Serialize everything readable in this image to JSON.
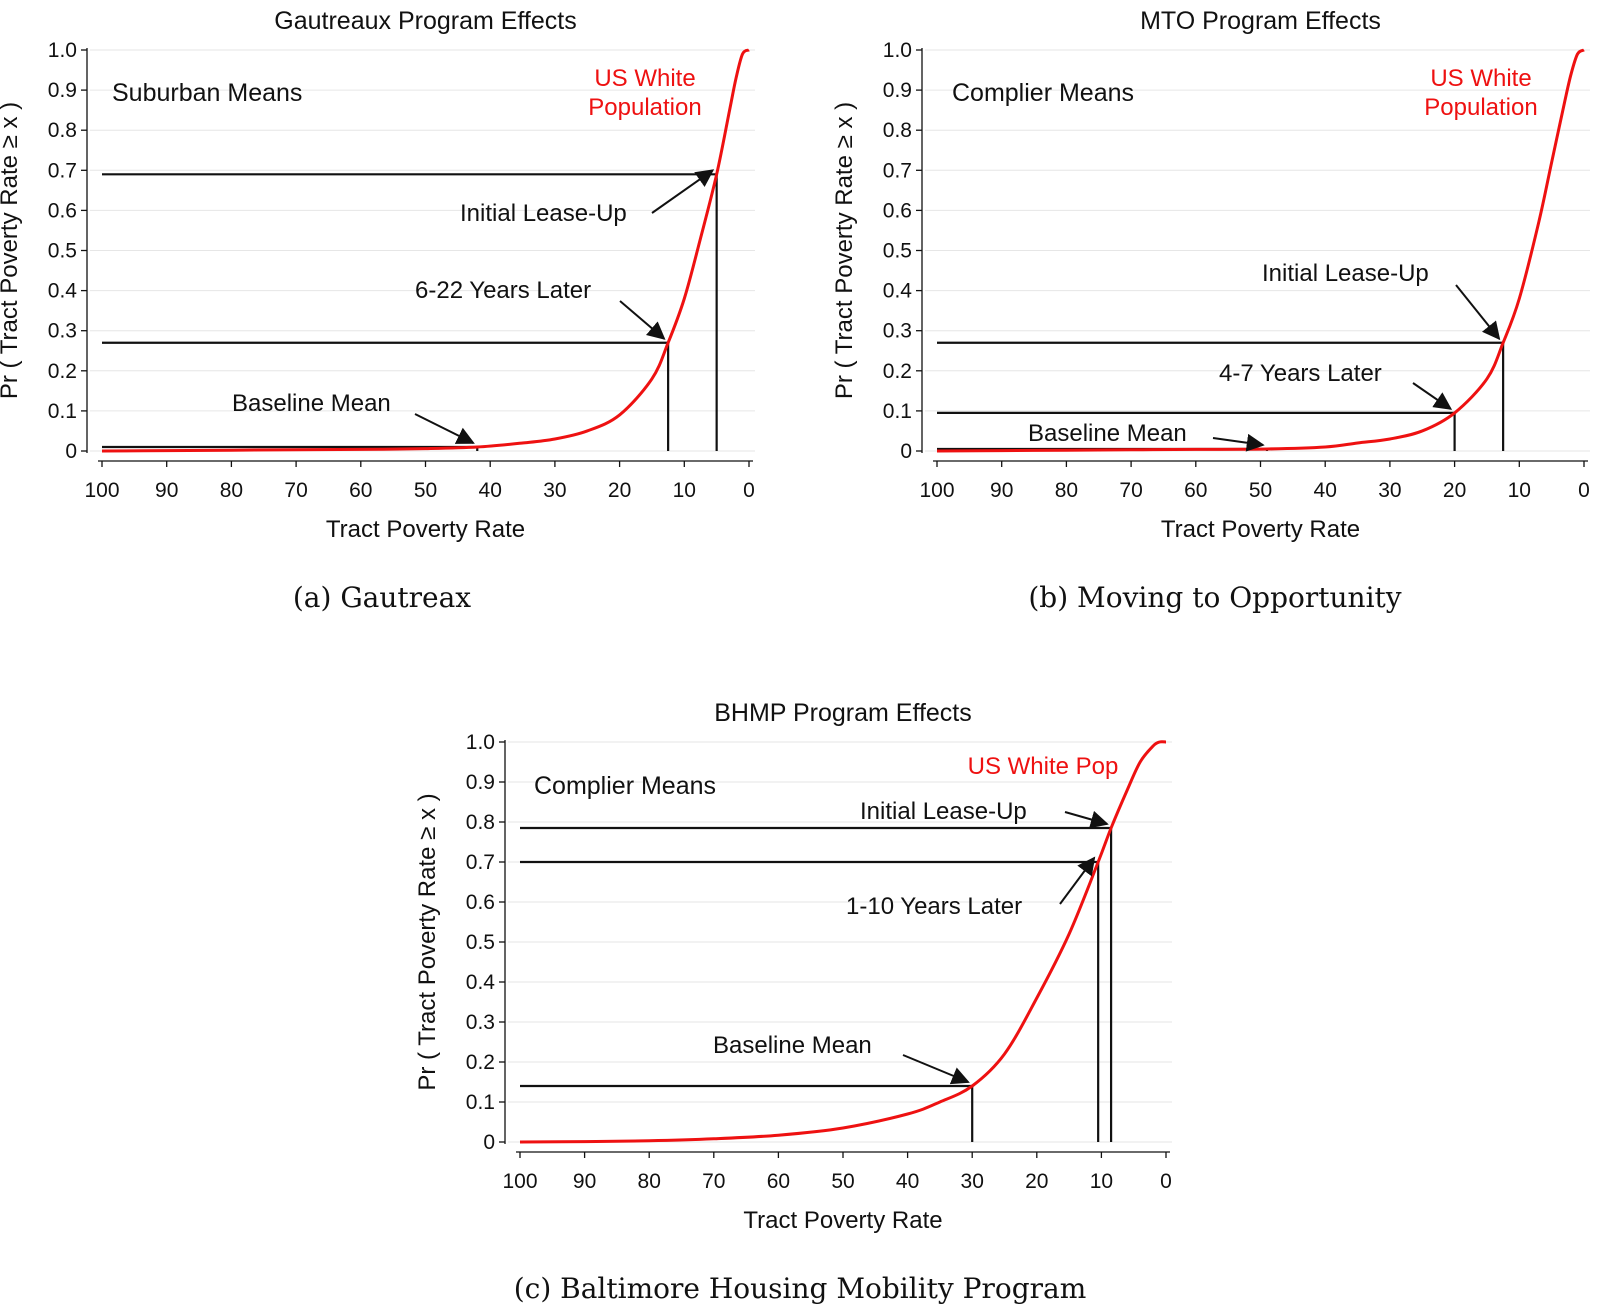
{
  "captions": [
    "(a) Gautreax",
    "(b) Moving to Opportunity",
    "(c) Baltimore Housing Mobility Program"
  ],
  "chart_data": [
    {
      "type": "line",
      "title": "Gautreaux Program Effects",
      "xlabel": "Tract Poverty Rate",
      "ylabel": "Pr ( Tract Poverty Rate ≥ x )",
      "xlim": [
        100,
        0
      ],
      "ylim": [
        0,
        1
      ],
      "x_reversed": true,
      "xticks": [
        "100",
        "90",
        "80",
        "70",
        "60",
        "50",
        "40",
        "30",
        "20",
        "10",
        "0"
      ],
      "yticks": [
        "0",
        "0.1",
        "0.2",
        "0.3",
        "0.4",
        "0.5",
        "0.6",
        "0.7",
        "0.8",
        "0.9",
        "1.0"
      ],
      "grid": true,
      "panel_label": "Suburban Means",
      "reference_label": [
        "US White",
        "Population"
      ],
      "series": [
        {
          "name": "US White Population",
          "color": "#ee1111",
          "x": [
            100,
            90,
            80,
            70,
            60,
            50,
            42,
            35,
            30,
            25,
            20,
            15,
            12.5,
            10,
            7.5,
            5,
            3,
            2,
            1,
            0
          ],
          "y": [
            0.0,
            0.001,
            0.002,
            0.003,
            0.004,
            0.006,
            0.01,
            0.02,
            0.03,
            0.05,
            0.09,
            0.18,
            0.27,
            0.38,
            0.53,
            0.69,
            0.85,
            0.93,
            0.99,
            1.0
          ]
        }
      ],
      "markers": [
        {
          "label": "Baseline Mean",
          "x": 42,
          "y": 0.01
        },
        {
          "label": "6-22 Years Later",
          "x": 12.5,
          "y": 0.27
        },
        {
          "label": "Initial Lease-Up",
          "x": 5,
          "y": 0.69
        }
      ]
    },
    {
      "type": "line",
      "title": "MTO Program Effects",
      "xlabel": "Tract Poverty Rate",
      "ylabel": "Pr ( Tract Poverty Rate ≥ x )",
      "xlim": [
        100,
        0
      ],
      "ylim": [
        0,
        1
      ],
      "x_reversed": true,
      "xticks": [
        "100",
        "90",
        "80",
        "70",
        "60",
        "50",
        "40",
        "30",
        "20",
        "10",
        "0"
      ],
      "yticks": [
        "0",
        "0.1",
        "0.2",
        "0.3",
        "0.4",
        "0.5",
        "0.6",
        "0.7",
        "0.8",
        "0.9",
        "1.0"
      ],
      "grid": true,
      "panel_label": "Complier Means",
      "reference_label": [
        "US White",
        "Population"
      ],
      "series": [
        {
          "name": "US White Population",
          "color": "#ee1111",
          "x": [
            100,
            90,
            80,
            70,
            60,
            49,
            40,
            35,
            30,
            25,
            20,
            15,
            12.5,
            10,
            7,
            5,
            3,
            2,
            1,
            0
          ],
          "y": [
            0.0,
            0.001,
            0.002,
            0.003,
            0.004,
            0.005,
            0.01,
            0.02,
            0.03,
            0.05,
            0.095,
            0.18,
            0.27,
            0.38,
            0.57,
            0.72,
            0.87,
            0.94,
            0.99,
            1.0
          ]
        }
      ],
      "markers": [
        {
          "label": "Baseline Mean",
          "x": 49,
          "y": 0.005
        },
        {
          "label": "4-7 Years Later",
          "x": 20,
          "y": 0.095
        },
        {
          "label": "Initial Lease-Up",
          "x": 12.5,
          "y": 0.27
        }
      ]
    },
    {
      "type": "line",
      "title": "BHMP Program Effects",
      "xlabel": "Tract Poverty Rate",
      "ylabel": "Pr ( Tract Poverty Rate ≥ x )",
      "xlim": [
        100,
        0
      ],
      "ylim": [
        0,
        1
      ],
      "x_reversed": true,
      "xticks": [
        "100",
        "90",
        "80",
        "70",
        "60",
        "50",
        "40",
        "30",
        "20",
        "10",
        "0"
      ],
      "yticks": [
        "0",
        "0.1",
        "0.2",
        "0.3",
        "0.4",
        "0.5",
        "0.6",
        "0.7",
        "0.8",
        "0.9",
        "1.0"
      ],
      "grid": true,
      "panel_label": "Complier Means",
      "reference_label": [
        "US White Pop"
      ],
      "series": [
        {
          "name": "US White Pop",
          "color": "#ee1111",
          "x": [
            100,
            90,
            80,
            70,
            60,
            50,
            40,
            35,
            30,
            25,
            20,
            15,
            10.5,
            8.5,
            6,
            4,
            2,
            1,
            0
          ],
          "y": [
            0.0,
            0.001,
            0.003,
            0.008,
            0.017,
            0.035,
            0.07,
            0.1,
            0.14,
            0.22,
            0.36,
            0.52,
            0.7,
            0.785,
            0.88,
            0.95,
            0.99,
            1.0,
            1.0
          ]
        }
      ],
      "markers": [
        {
          "label": "Baseline Mean",
          "x": 30,
          "y": 0.14
        },
        {
          "label": "1-10 Years Later",
          "x": 10.5,
          "y": 0.7
        },
        {
          "label": "Initial Lease-Up",
          "x": 8.5,
          "y": 0.785
        }
      ]
    }
  ]
}
